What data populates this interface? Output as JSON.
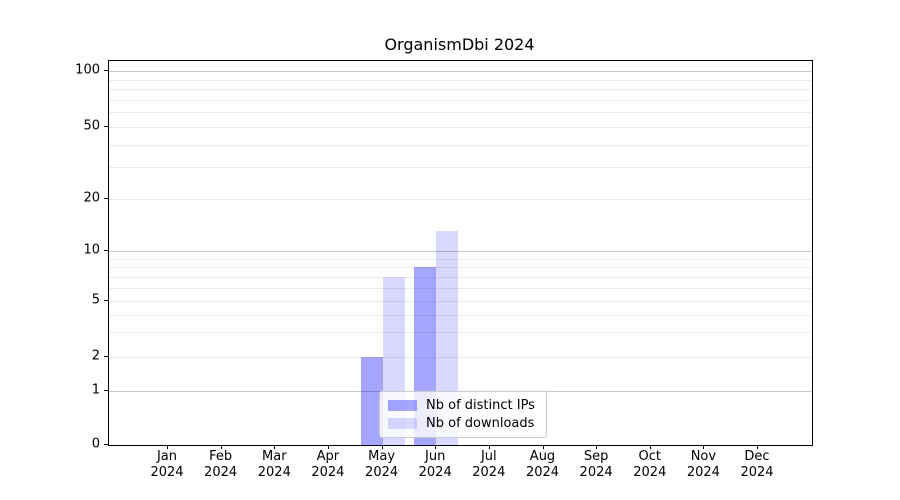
{
  "chart_data": {
    "type": "bar",
    "title": "OrganismDbi 2024",
    "x_categories": [
      {
        "month": "Jan",
        "year": "2024"
      },
      {
        "month": "Feb",
        "year": "2024"
      },
      {
        "month": "Mar",
        "year": "2024"
      },
      {
        "month": "Apr",
        "year": "2024"
      },
      {
        "month": "May",
        "year": "2024"
      },
      {
        "month": "Jun",
        "year": "2024"
      },
      {
        "month": "Jul",
        "year": "2024"
      },
      {
        "month": "Aug",
        "year": "2024"
      },
      {
        "month": "Sep",
        "year": "2024"
      },
      {
        "month": "Oct",
        "year": "2024"
      },
      {
        "month": "Nov",
        "year": "2024"
      },
      {
        "month": "Dec",
        "year": "2024"
      }
    ],
    "series": [
      {
        "name": "Nb of distinct IPs",
        "color": "rgba(0,0,255,0.35)",
        "values": [
          0,
          0,
          0,
          0,
          2,
          8,
          0,
          0,
          0,
          0,
          0,
          0
        ]
      },
      {
        "name": "Nb of downloads",
        "color": "rgba(0,0,255,0.15)",
        "values": [
          0,
          0,
          0,
          0,
          7,
          13,
          0,
          0,
          0,
          0,
          0,
          0
        ]
      }
    ],
    "y_axis": {
      "scale": "symlog",
      "tick_labels": [
        0,
        1,
        2,
        5,
        10,
        20,
        50,
        100
      ],
      "major_gridlines": [
        1,
        10,
        100
      ],
      "minor_gridlines": [
        2,
        3,
        4,
        5,
        6,
        7,
        8,
        9,
        20,
        30,
        40,
        50,
        60,
        70,
        80,
        90
      ],
      "range": [
        0,
        113
      ]
    },
    "legend": {
      "position": "lower center-right inside plot"
    },
    "grid_colors": {
      "major": "#c6c6c6",
      "minor": "#ebebeb"
    }
  }
}
